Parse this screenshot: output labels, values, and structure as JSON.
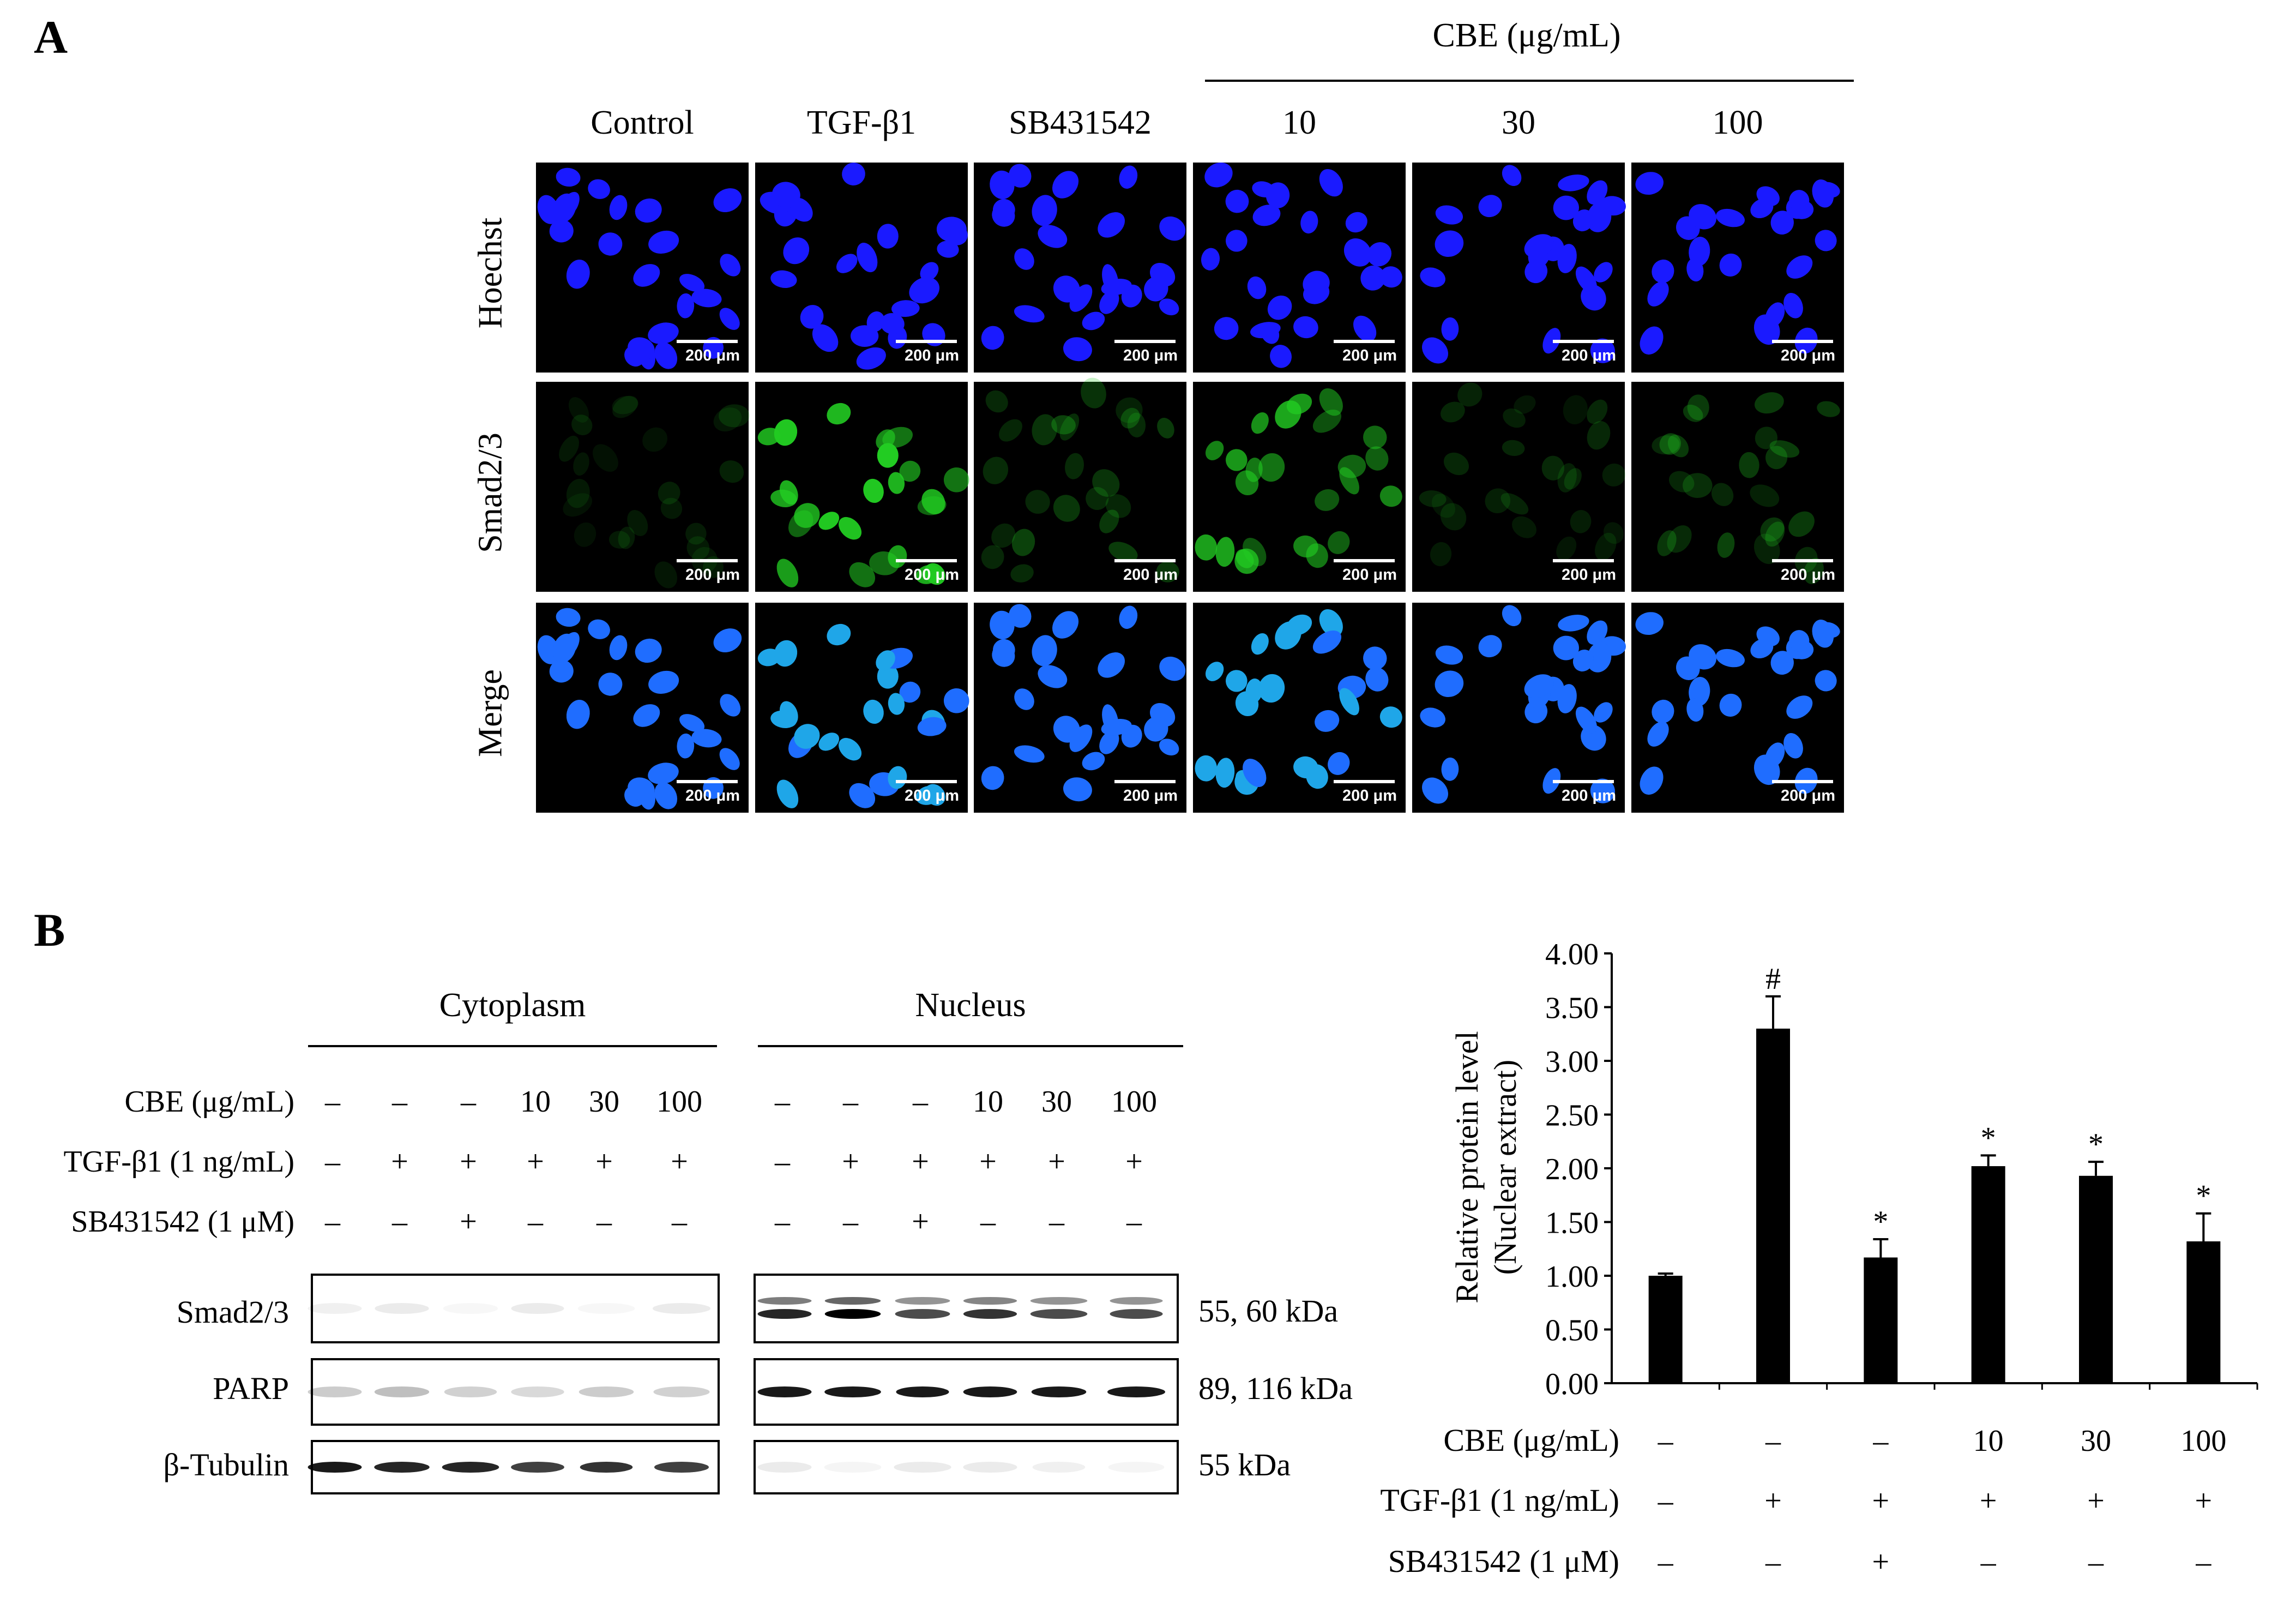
{
  "panel_a": {
    "letter": "A",
    "cbe_group_label": "CBE (μg/mL)",
    "columns": [
      "Control",
      "TGF-β1",
      "SB431542",
      "10",
      "30",
      "100"
    ],
    "rows": [
      "Hoechst",
      "Smad2/3",
      "Merge"
    ],
    "scale_bar": "200 μm",
    "colors": {
      "hoechst": "#1a1aff",
      "smad": "#22cc22",
      "merge": "#1f6dff"
    }
  },
  "panel_b": {
    "letter": "B",
    "cytoplasm_label": "Cytoplasm",
    "nucleus_label": "Nucleus",
    "treatment_labels": [
      "CBE (μg/mL)",
      "TGF-β1 (1 ng/mL)",
      "SB431542 (1 μM)"
    ],
    "cbe_values": [
      "–",
      "–",
      "–",
      "10",
      "30",
      "100"
    ],
    "tgf_values": [
      "–",
      "+",
      "+",
      "+",
      "+",
      "+"
    ],
    "sb_values": [
      "–",
      "–",
      "+",
      "–",
      "–",
      "–"
    ],
    "proteins": [
      "Smad2/3",
      "PARP",
      "β-Tubulin"
    ],
    "kda_labels": [
      "55, 60 kDa",
      "89, 116 kDa",
      "55 kDa"
    ]
  },
  "chart_data": {
    "type": "bar",
    "ylabel_line1": "Relative protein level",
    "ylabel_line2": "(Nuclear extract)",
    "ylim": [
      0,
      4
    ],
    "yticks": [
      "0.00",
      "0.50",
      "1.00",
      "1.50",
      "2.00",
      "2.50",
      "3.00",
      "3.50",
      "4.00"
    ],
    "values": [
      1.0,
      3.3,
      1.17,
      2.02,
      1.93,
      1.32
    ],
    "errors": [
      0.02,
      0.3,
      0.17,
      0.1,
      0.13,
      0.26
    ],
    "annotations": [
      "",
      "#",
      "*",
      "*",
      "*",
      "*"
    ],
    "bar_color": "#000000",
    "treatment_labels": [
      "CBE (μg/mL)",
      "TGF-β1 (1 ng/mL)",
      "SB431542 (1 μM)"
    ],
    "cbe_values": [
      "–",
      "–",
      "–",
      "10",
      "30",
      "100"
    ],
    "tgf_values": [
      "–",
      "+",
      "+",
      "+",
      "+",
      "+"
    ],
    "sb_values": [
      "–",
      "–",
      "+",
      "–",
      "–",
      "–"
    ]
  }
}
